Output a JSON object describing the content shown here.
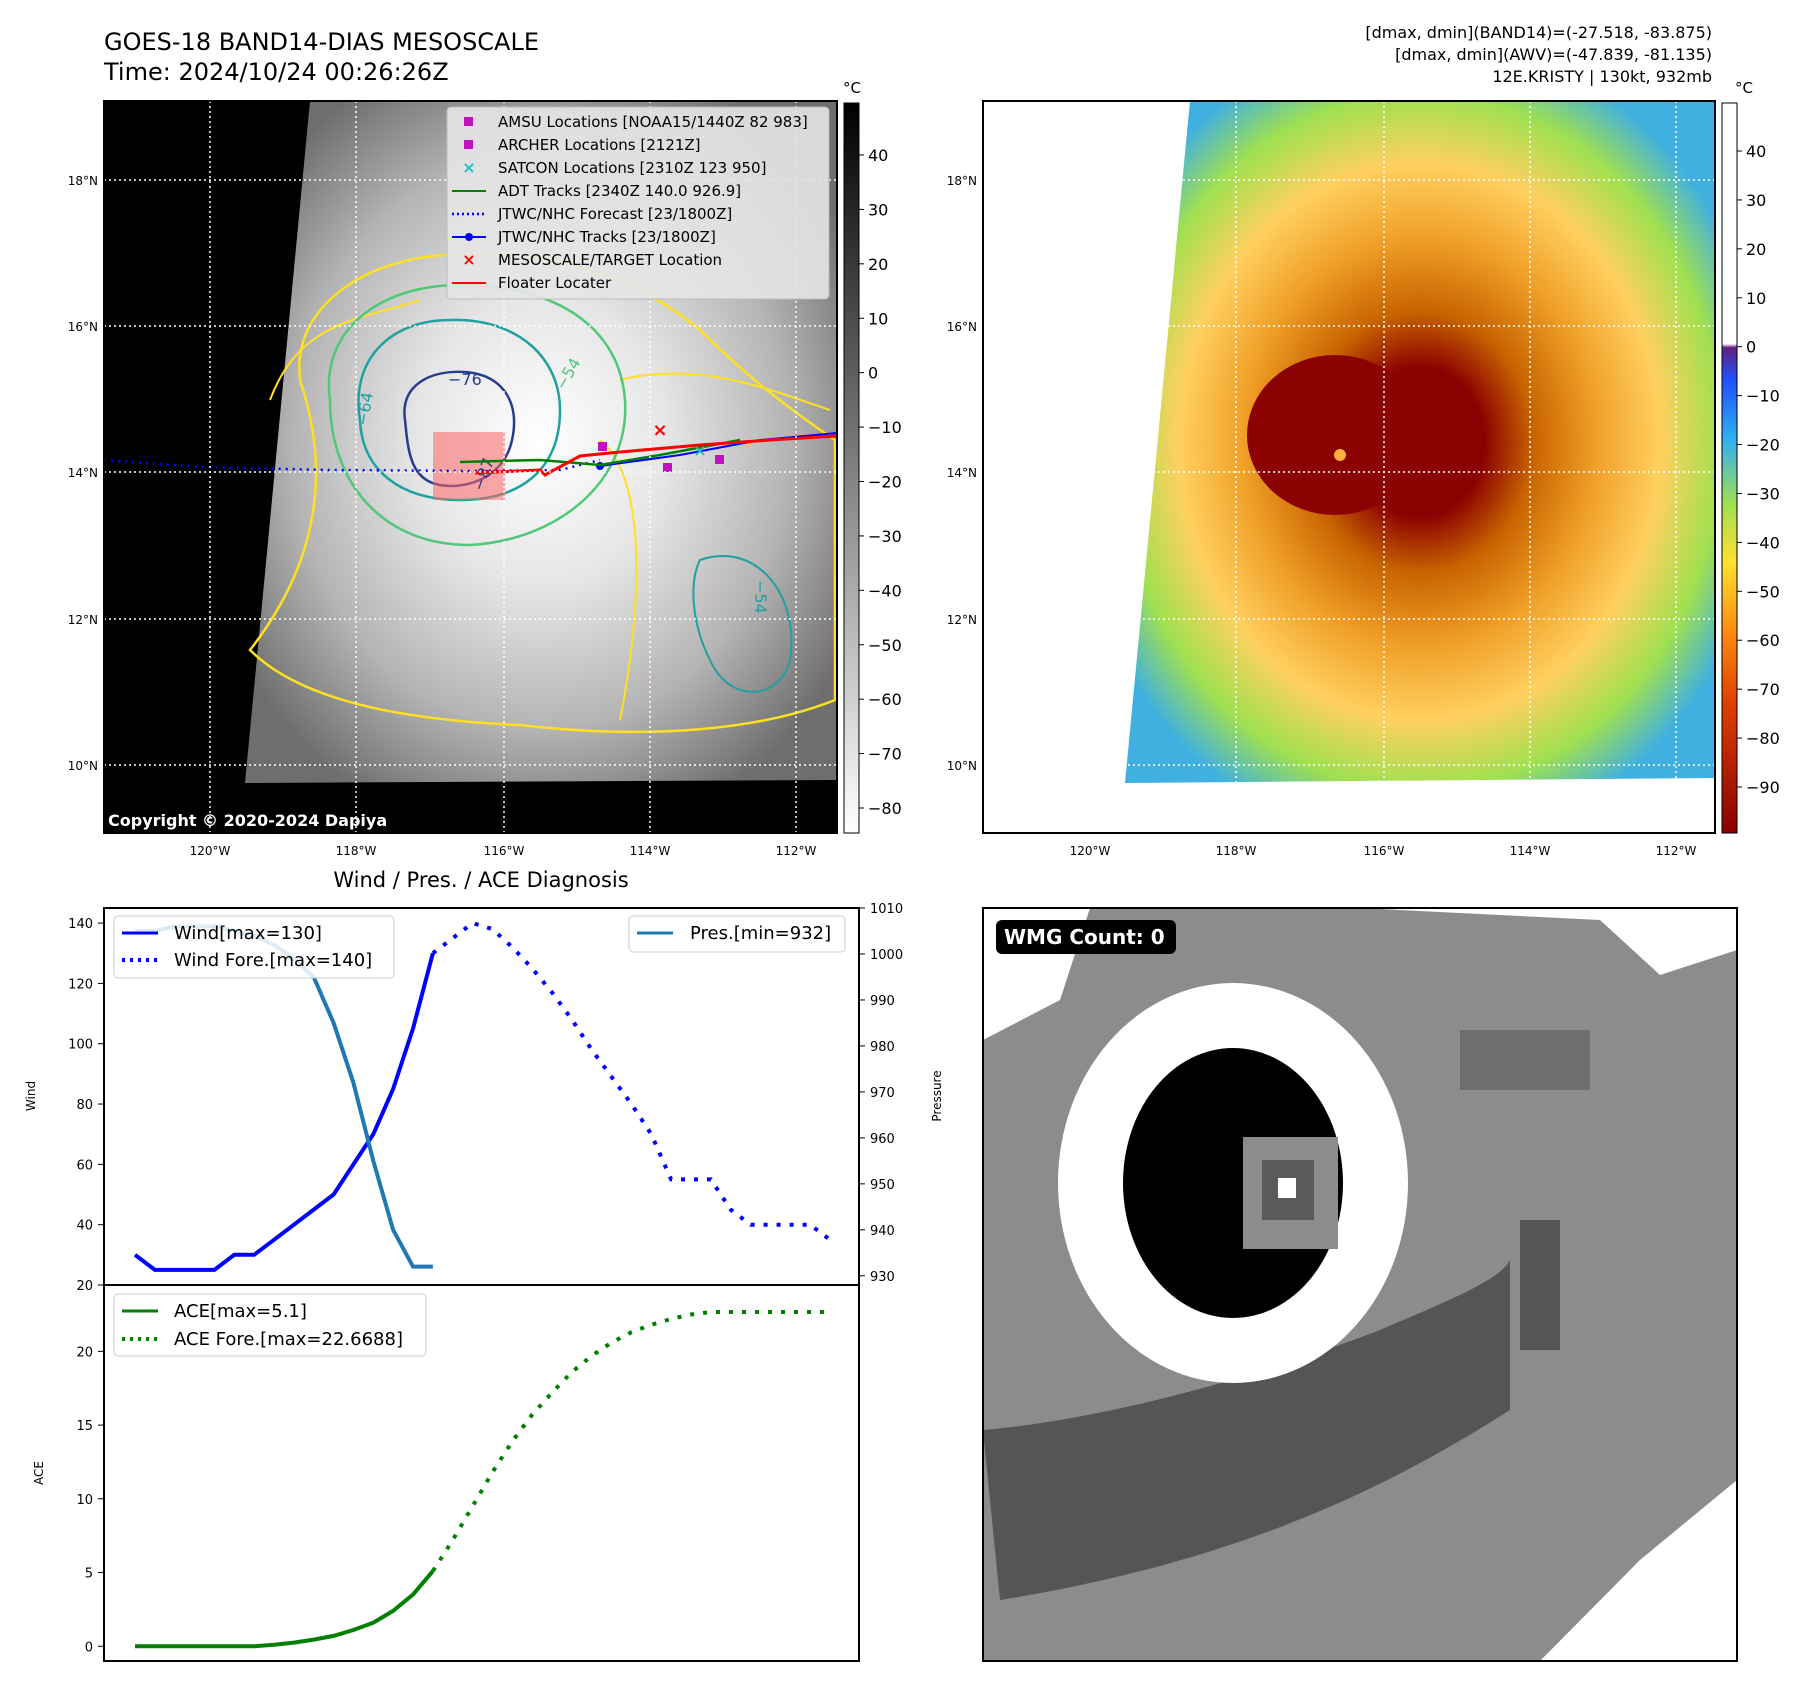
{
  "header": {
    "title_line1": "GOES-18 BAND14-DIAS MESOSCALE",
    "title_line2": "Time: 2024/10/24 00:26:26Z",
    "right_line1": "[dmax, dmin](BAND14)=(-27.518, -83.875)",
    "right_line2": "[dmax, dmin](AWV)=(-47.839, -81.135)",
    "right_line3": "12E.KRISTY | 130kt, 932mb"
  },
  "map": {
    "lat_labels": [
      "18°N",
      "16°N",
      "14°N",
      "12°N",
      "10°N"
    ],
    "lon_labels": [
      "120°W",
      "118°W",
      "116°W",
      "114°W",
      "112°W"
    ],
    "copyright": "Copyright © 2020-2024 Dapiya",
    "contour_labels": [
      "−76",
      "−64",
      "−54",
      "−54",
      "−87"
    ],
    "legend": [
      {
        "label": "AMSU Locations [NOAA15/1440Z 82 983]",
        "color": "#c010c0",
        "marker": "square"
      },
      {
        "label": "ARCHER Locations [2121Z]",
        "color": "#c010c0",
        "marker": "square"
      },
      {
        "label": "SATCON Locations [2310Z 123 950]",
        "color": "#20c0c0",
        "marker": "x"
      },
      {
        "label": "ADT Tracks [2340Z 140.0 926.9]",
        "color": "#008000",
        "marker": "line"
      },
      {
        "label": "JTWC/NHC Forecast [23/1800Z]",
        "color": "#0000ff",
        "marker": "dotted"
      },
      {
        "label": "JTWC/NHC Tracks [23/1800Z]",
        "color": "#0000ff",
        "marker": "line-dot"
      },
      {
        "label": "MESOSCALE/TARGET Location",
        "color": "#ff0000",
        "marker": "x"
      },
      {
        "label": "Floater Locater",
        "color": "#ff0000",
        "marker": "line"
      }
    ]
  },
  "colorbar_left": {
    "unit": "°C",
    "ticks": [
      "40",
      "30",
      "20",
      "10",
      "0",
      "−10",
      "−20",
      "−30",
      "−40",
      "−50",
      "−60",
      "−70",
      "−80"
    ]
  },
  "colorbar_right": {
    "unit": "°C",
    "ticks": [
      "40",
      "30",
      "20",
      "10",
      "0",
      "−10",
      "−20",
      "−30",
      "−40",
      "−50",
      "−60",
      "−70",
      "−80",
      "−90"
    ]
  },
  "wmg": {
    "label": "WMG Count: 0"
  },
  "colors": {
    "wind": "#0000ff",
    "pressure": "#1f77b4",
    "ace": "#008000",
    "floater": "#ff0000",
    "contour_yellow": "#ffe020",
    "contour_green": "#50c878",
    "contour_teal": "#20a0a0",
    "contour_navy": "#283c8c"
  },
  "chart_data": [
    {
      "type": "line",
      "title": "Wind / Pres. / ACE Diagnosis",
      "ylabel": "Wind",
      "y2label": "Pressure",
      "ylim": [
        20,
        145
      ],
      "y2lim": [
        928,
        1010
      ],
      "yticks": [
        "20",
        "40",
        "60",
        "80",
        "100",
        "120",
        "140"
      ],
      "y2ticks": [
        "930",
        "940",
        "950",
        "960",
        "970",
        "980",
        "990",
        "1000",
        "1010"
      ],
      "legend_left": [
        "Wind[max=130]",
        "Wind Fore.[max=140]"
      ],
      "legend_right": [
        "Pres.[min=932]"
      ],
      "series": [
        {
          "name": "Wind[max=130]",
          "axis": "left",
          "style": "solid",
          "x": [
            0,
            1,
            2,
            3,
            4,
            5,
            6,
            7,
            8,
            9,
            10,
            11,
            12,
            13,
            14,
            15
          ],
          "values": [
            30,
            25,
            25,
            25,
            25,
            30,
            30,
            35,
            40,
            45,
            50,
            60,
            70,
            85,
            105,
            130
          ]
        },
        {
          "name": "Wind Fore.[max=140]",
          "axis": "left",
          "style": "dotted",
          "x": [
            15,
            16,
            17,
            18,
            19,
            20,
            21,
            22,
            23,
            24,
            25,
            26,
            27,
            28,
            29,
            30,
            31,
            32,
            33,
            34,
            35
          ],
          "values": [
            130,
            135,
            140,
            138,
            132,
            125,
            117,
            108,
            98,
            89,
            80,
            70,
            55,
            55,
            55,
            45,
            40,
            40,
            40,
            40,
            35
          ]
        },
        {
          "name": "Pres.[min=932]",
          "axis": "right",
          "style": "solid",
          "x": [
            0,
            1,
            2,
            3,
            4,
            5,
            6,
            7,
            8,
            9,
            10,
            11,
            12,
            13,
            14,
            15
          ],
          "values": [
            1005,
            1005,
            1006,
            1006,
            1006,
            1005,
            1004,
            1002,
            999,
            995,
            985,
            972,
            955,
            940,
            932,
            932
          ]
        }
      ]
    },
    {
      "type": "line",
      "ylabel": "ACE",
      "ylim": [
        -1,
        24.5
      ],
      "yticks": [
        "0",
        "5",
        "10",
        "15",
        "20"
      ],
      "legend": [
        "ACE[max=5.1]",
        "ACE Fore.[max=22.6688]"
      ],
      "series": [
        {
          "name": "ACE[max=5.1]",
          "style": "solid",
          "x": [
            0,
            1,
            2,
            3,
            4,
            5,
            6,
            7,
            8,
            9,
            10,
            11,
            12,
            13,
            14,
            15
          ],
          "values": [
            0,
            0,
            0,
            0,
            0,
            0,
            0,
            0.1,
            0.25,
            0.45,
            0.7,
            1.1,
            1.6,
            2.4,
            3.5,
            5.1
          ]
        },
        {
          "name": "ACE Fore.[max=22.6688]",
          "style": "dotted",
          "x": [
            15,
            16,
            17,
            18,
            19,
            20,
            21,
            22,
            23,
            24,
            25,
            26,
            27,
            28,
            29,
            30,
            31,
            32,
            33,
            34,
            35
          ],
          "values": [
            5.1,
            7.2,
            9.5,
            11.8,
            13.9,
            15.7,
            17.2,
            18.6,
            19.7,
            20.6,
            21.3,
            21.8,
            22.2,
            22.5,
            22.67,
            22.67,
            22.67,
            22.67,
            22.67,
            22.67,
            22.67
          ]
        }
      ]
    }
  ]
}
